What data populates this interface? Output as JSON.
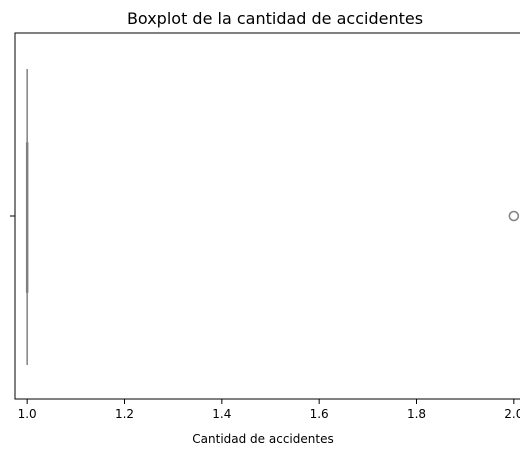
{
  "chart_data": {
    "type": "boxplot",
    "title": "Boxplot de la cantidad de accidentes",
    "xlabel": "Cantidad de accidentes",
    "ylabel": "",
    "xlim": [
      0.975,
      2.025
    ],
    "x_ticks": [
      1.0,
      1.2,
      1.4,
      1.6,
      1.8,
      2.0
    ],
    "x_tick_labels": [
      "1.0",
      "1.2",
      "1.4",
      "1.6",
      "1.8",
      "2.0"
    ],
    "box": {
      "q1": 1.0,
      "median": 1.0,
      "q3": 1.0,
      "whisker_low": 1.0,
      "whisker_high": 1.0
    },
    "outliers": [
      2.0
    ],
    "grid": false,
    "colors": {
      "box": "#808080",
      "outlier": "#808080"
    }
  }
}
